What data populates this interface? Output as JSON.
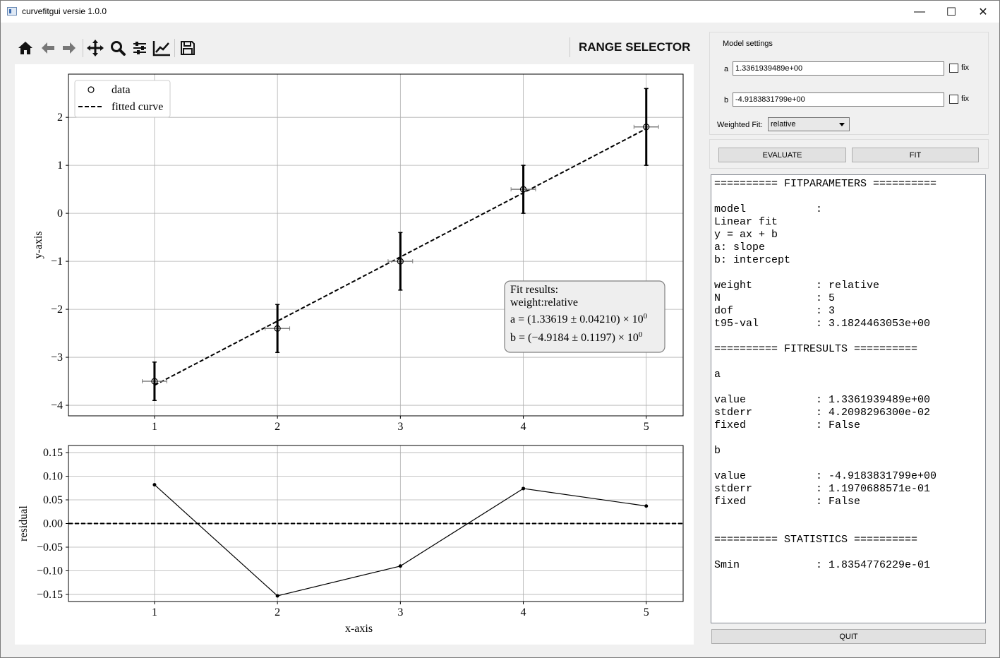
{
  "window": {
    "title": "curvefitgui versie 1.0.0",
    "minimize": "—",
    "maximize": "☐",
    "close": "✕"
  },
  "toolbar": {
    "icons": [
      "home-icon",
      "back-arrow-icon",
      "forward-arrow-icon",
      "pan-icon",
      "zoom-icon",
      "configure-subplots-icon",
      "edit-axis-icon",
      "save-icon"
    ],
    "range_selector": "RANGE SELECTOR"
  },
  "chart_data": [
    {
      "type": "scatter",
      "title": "",
      "xlabel": "",
      "ylabel": "y-axis",
      "xlim": [
        0.3,
        5.3
      ],
      "ylim": [
        -4.22,
        2.9
      ],
      "xticks": [
        1,
        2,
        3,
        4,
        5
      ],
      "yticks": [
        -4,
        -3,
        -2,
        -1,
        0,
        1,
        2
      ],
      "ytick_labels": [
        "−4",
        "−3",
        "−2",
        "−1",
        "0",
        "1",
        "2"
      ],
      "grid": true,
      "legend": {
        "placement": "top-left",
        "entries": [
          "data",
          "fitted curve"
        ]
      },
      "series": [
        {
          "name": "data",
          "x": [
            1,
            2,
            3,
            4,
            5
          ],
          "y": [
            -3.5,
            -2.4,
            -1.0,
            0.5,
            1.8
          ],
          "yerr": [
            0.4,
            0.5,
            0.6,
            0.5,
            0.8
          ],
          "xerr": [
            0.1,
            0.1,
            0.1,
            0.1,
            0.1
          ]
        },
        {
          "name": "fitted curve",
          "style": "dashed",
          "x": [
            1,
            5
          ],
          "y": [
            -3.582,
            1.763
          ]
        }
      ],
      "annotation": {
        "line1": "Fit results:",
        "line2": "weight:relative",
        "a_prefix": "a = (1.33619 ± 0.04210) × 10",
        "a_exp": "0",
        "b_prefix": "b = (−4.9184 ± 0.1197) × 10",
        "b_exp": "0"
      }
    },
    {
      "type": "line",
      "title": "",
      "xlabel": "x-axis",
      "ylabel": "residual",
      "xlim": [
        0.3,
        5.3
      ],
      "ylim": [
        -0.165,
        0.165
      ],
      "xticks": [
        1,
        2,
        3,
        4,
        5
      ],
      "yticks": [
        -0.15,
        -0.1,
        -0.05,
        0.0,
        0.05,
        0.1,
        0.15
      ],
      "ytick_labels": [
        "−0.15",
        "−0.10",
        "−0.05",
        "0.00",
        "0.05",
        "0.10",
        "0.15"
      ],
      "grid": true,
      "zero_line": "dashed",
      "series": [
        {
          "x": [
            1,
            2,
            3,
            4,
            5
          ],
          "y": [
            0.082,
            -0.153,
            -0.09,
            0.074,
            0.037
          ]
        }
      ]
    }
  ],
  "panel": {
    "model_settings_label": "Model settings",
    "param_a_label": "a",
    "param_a_value": "1.3361939489e+00",
    "param_b_label": "b",
    "param_b_value": "-4.9183831799e+00",
    "fix_label": "fix",
    "weighted_fit_label": "Weighted Fit:",
    "weighted_fit_value": "relative",
    "evaluate_button": "EVALUATE",
    "fit_button": "FIT",
    "quit_button": "QUIT",
    "output_text": "========== FITPARAMETERS ==========\n\nmodel           :\nLinear fit\ny = ax + b\na: slope\nb: intercept\n\nweight          : relative\nN               : 5\ndof             : 3\nt95-val         : 3.1824463053e+00\n\n========== FITRESULTS ==========\n\na\n\nvalue           : 1.3361939489e+00\nstderr          : 4.2098296300e-02\nfixed           : False\n\nb\n\nvalue           : -4.9183831799e+00\nstderr          : 1.1970688571e-01\nfixed           : False\n\n\n========== STATISTICS ==========\n\nSmin            : 1.8354776229e-01"
  }
}
